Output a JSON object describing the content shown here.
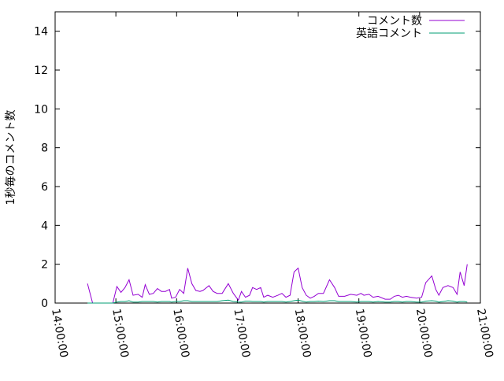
{
  "chart_data": {
    "type": "line",
    "title": "",
    "xlabel": "",
    "ylabel": "1秒毎のコメント数",
    "xlim": [
      "14:00:00",
      "21:00:00"
    ],
    "ylim": [
      0,
      15
    ],
    "xticks": [
      "14:00:00",
      "15:00:00",
      "16:00:00",
      "17:00:00",
      "18:00:00",
      "19:00:00",
      "20:00:00",
      "21:00:00"
    ],
    "yticks": [
      "0",
      "2",
      "4",
      "6",
      "8",
      "10",
      "12",
      "14"
    ],
    "grid": false,
    "legend_position": "top-right",
    "x": [
      "14:32",
      "14:37",
      "14:45",
      "14:51",
      "14:57",
      "15:01",
      "15:05",
      "15:09",
      "15:13",
      "15:17",
      "15:22",
      "15:26",
      "15:29",
      "15:33",
      "15:37",
      "15:41",
      "15:45",
      "15:49",
      "15:53",
      "15:55",
      "15:59",
      "16:03",
      "16:07",
      "16:11",
      "16:15",
      "16:19",
      "16:23",
      "16:26",
      "16:32",
      "16:36",
      "16:40",
      "16:45",
      "16:51",
      "16:56",
      "17:01",
      "17:04",
      "17:08",
      "17:12",
      "17:15",
      "17:19",
      "17:23",
      "17:26",
      "17:30",
      "17:35",
      "17:40",
      "17:44",
      "17:48",
      "17:52",
      "17:56",
      "18:00",
      "18:04",
      "18:08",
      "18:12",
      "18:16",
      "18:20",
      "18:25",
      "18:31",
      "18:36",
      "18:40",
      "18:46",
      "18:52",
      "18:58",
      "19:02",
      "19:05",
      "19:10",
      "19:14",
      "19:19",
      "19:26",
      "19:31",
      "19:35",
      "19:39",
      "19:43",
      "19:47",
      "19:51",
      "19:57",
      "20:02",
      "20:06",
      "20:12",
      "20:16",
      "20:19",
      "20:23",
      "20:28",
      "20:33",
      "20:37",
      "20:40",
      "20:44",
      "20:47"
    ],
    "series": [
      {
        "name": "コメント数",
        "color": "#9400d3",
        "values": [
          1.0,
          0,
          0,
          0,
          0,
          0.85,
          0.55,
          0.8,
          1.2,
          0.4,
          0.45,
          0.3,
          0.95,
          0.45,
          0.5,
          0.75,
          0.6,
          0.6,
          0.7,
          0.25,
          0.3,
          0.7,
          0.5,
          1.8,
          1.0,
          0.65,
          0.6,
          0.65,
          0.9,
          0.6,
          0.5,
          0.5,
          1.0,
          0.5,
          0.15,
          0.6,
          0.3,
          0.4,
          0.8,
          0.7,
          0.8,
          0.3,
          0.4,
          0.3,
          0.4,
          0.5,
          0.3,
          0.4,
          1.6,
          1.8,
          0.8,
          0.4,
          0.25,
          0.35,
          0.5,
          0.5,
          1.2,
          0.8,
          0.35,
          0.35,
          0.45,
          0.4,
          0.5,
          0.4,
          0.45,
          0.3,
          0.35,
          0.2,
          0.2,
          0.35,
          0.4,
          0.3,
          0.35,
          0.3,
          0.25,
          0.3,
          1.05,
          1.4,
          0.7,
          0.4,
          0.8,
          0.9,
          0.8,
          0.45,
          1.6,
          0.9,
          2.0
        ]
      },
      {
        "name": "英語コメント",
        "color": "#009e73",
        "values": [
          0,
          0,
          0,
          0,
          0,
          0.05,
          0.08,
          0.08,
          0.12,
          0.05,
          0.05,
          0.08,
          0.08,
          0.08,
          0.08,
          0.05,
          0.08,
          0.08,
          0.08,
          0.05,
          0.08,
          0.08,
          0.12,
          0.12,
          0.08,
          0.08,
          0.08,
          0.08,
          0.08,
          0.08,
          0.08,
          0.12,
          0.15,
          0.08,
          0.05,
          0.05,
          0.1,
          0.1,
          0.08,
          0.08,
          0.08,
          0.05,
          0.08,
          0.08,
          0.08,
          0.08,
          0.05,
          0.08,
          0.12,
          0.15,
          0.1,
          0.05,
          0.08,
          0.08,
          0.1,
          0.08,
          0.12,
          0.12,
          0.08,
          0.08,
          0.08,
          0.05,
          0.08,
          0.08,
          0.08,
          0.05,
          0.08,
          0.05,
          0.05,
          0.08,
          0.08,
          0.05,
          0.08,
          0.08,
          0.05,
          0.05,
          0.1,
          0.12,
          0.1,
          0.05,
          0.08,
          0.12,
          0.1,
          0.05,
          0.08,
          0.08,
          0.05
        ]
      }
    ]
  }
}
